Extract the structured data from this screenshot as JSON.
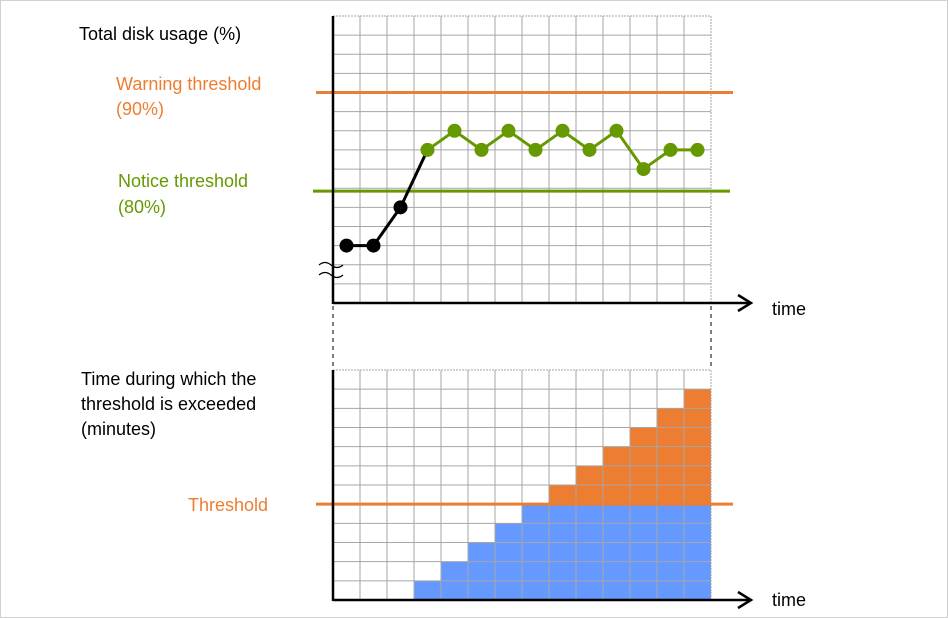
{
  "colors": {
    "warning": "#ED7D31",
    "notice": "#669900",
    "below": "#000000",
    "blue": "#6699FF",
    "orange": "#ED7D31",
    "grid": "#A6A6A6"
  },
  "top_chart": {
    "ylabel": "Total disk usage (%)",
    "xlabel": "time",
    "warning": {
      "label": "Warning threshold",
      "value_label": "(90%)",
      "level": 11
    },
    "notice": {
      "label": "Notice threshold",
      "value_label": "(80%)",
      "level": 5.85
    },
    "grid_cols": 14,
    "grid_rows": 15,
    "levels": [
      3,
      3,
      5,
      8,
      9,
      8,
      9,
      8,
      9,
      8,
      9,
      7,
      8,
      8
    ],
    "axis_break": true
  },
  "bottom_chart": {
    "ylabel_lines": [
      "Time during which the",
      "threshold is exceeded",
      "(minutes)"
    ],
    "xlabel": "time",
    "threshold": {
      "label": "Threshold",
      "level": 5
    },
    "grid_cols": 14,
    "grid_rows": 12,
    "bars": [
      0,
      0,
      0,
      1,
      2,
      3,
      4,
      5,
      6,
      7,
      8,
      9,
      10,
      11
    ]
  }
}
